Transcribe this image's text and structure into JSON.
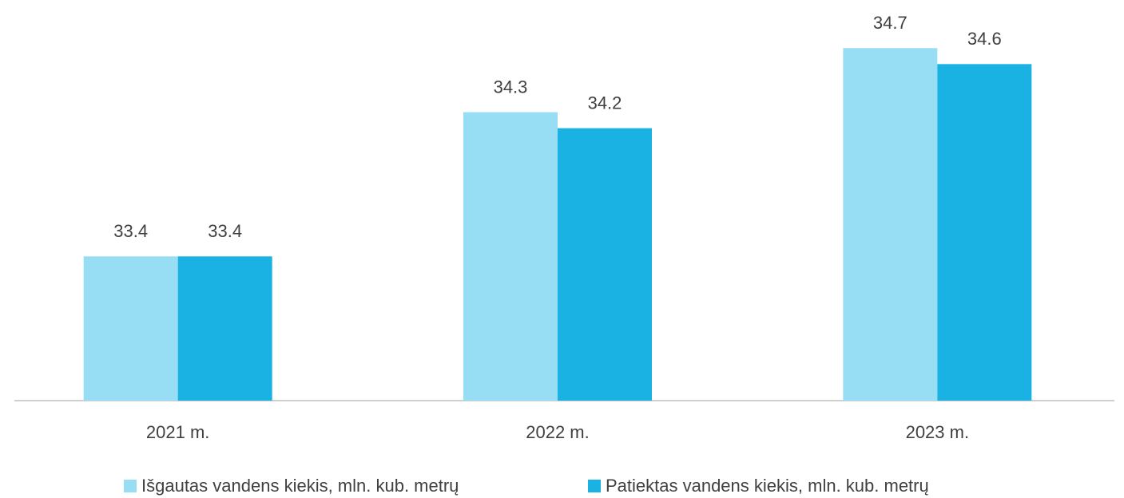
{
  "chart_data": {
    "type": "bar",
    "categories": [
      "2021 m.",
      "2022 m.",
      "2023 m."
    ],
    "series": [
      {
        "name": "Išgautas vandens kiekis, mln. kub. metrų",
        "color": "#97def5",
        "values": [
          33.4,
          34.3,
          34.7
        ]
      },
      {
        "name": "Patiektas vandens kiekis, mln. kub. metrų",
        "color": "#19b2e2",
        "values": [
          33.4,
          34.2,
          34.6
        ]
      }
    ],
    "ylim": [
      32.5,
      35
    ],
    "legend": "bottom"
  }
}
